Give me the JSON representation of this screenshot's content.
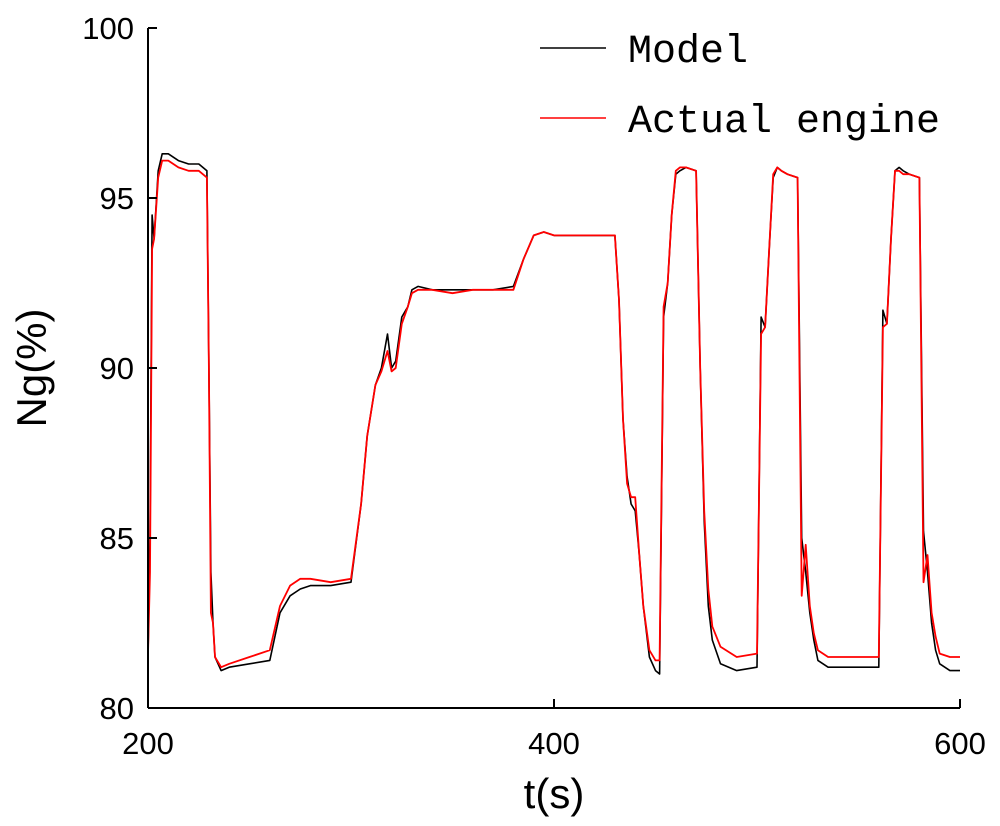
{
  "chart_data": {
    "type": "line",
    "title": "",
    "xlabel": "t(s)",
    "ylabel": "Ng(%)",
    "xlim": [
      200,
      600
    ],
    "ylim": [
      80,
      100
    ],
    "xticks": [
      200,
      400,
      600
    ],
    "yticks": [
      80,
      85,
      90,
      95,
      100
    ],
    "grid": false,
    "legend_position": "top-right",
    "series": [
      {
        "name": "Model",
        "color": "#000000",
        "x": [
          200,
          201,
          202,
          203,
          205,
          207,
          210,
          215,
          220,
          225,
          229,
          230,
          231,
          232,
          233,
          236,
          240,
          250,
          260,
          265,
          270,
          275,
          280,
          290,
          300,
          305,
          308,
          312,
          315,
          318,
          320,
          322,
          325,
          328,
          330,
          333,
          340,
          350,
          360,
          370,
          380,
          385,
          390,
          395,
          400,
          410,
          420,
          430,
          432,
          434,
          436,
          438,
          440,
          442,
          444,
          447,
          450,
          452,
          454,
          456,
          458,
          460,
          462,
          465,
          470,
          472,
          474,
          476,
          478,
          482,
          490,
          500,
          502,
          504,
          506,
          508,
          510,
          512,
          515,
          520,
          522,
          524,
          526,
          528,
          530,
          535,
          540,
          550,
          560,
          562,
          564,
          566,
          568,
          570,
          572,
          575,
          580,
          582,
          584,
          586,
          588,
          590,
          595,
          600
        ],
        "y": [
          81.5,
          85,
          94.5,
          93.8,
          95.8,
          96.3,
          96.3,
          96.1,
          96.0,
          96.0,
          95.8,
          90,
          84,
          82.5,
          81.5,
          81.1,
          81.2,
          81.3,
          81.4,
          82.8,
          83.3,
          83.5,
          83.6,
          83.6,
          83.7,
          86,
          88,
          89.5,
          90.0,
          91.0,
          90.0,
          90.2,
          91.5,
          91.8,
          92.3,
          92.4,
          92.3,
          92.3,
          92.3,
          92.3,
          92.4,
          93.2,
          93.9,
          94.0,
          93.9,
          93.9,
          93.9,
          93.9,
          92,
          88.5,
          86.8,
          86.0,
          85.8,
          84.5,
          83,
          81.5,
          81.1,
          81.0,
          91.5,
          92.5,
          94.5,
          95.7,
          95.8,
          95.9,
          95.8,
          90,
          85.5,
          83,
          82,
          81.3,
          81.1,
          81.2,
          91.5,
          91.2,
          93.5,
          95.6,
          95.9,
          95.8,
          95.7,
          95.6,
          85.0,
          84.0,
          82.8,
          82.0,
          81.4,
          81.2,
          81.2,
          81.2,
          81.2,
          91.7,
          91.3,
          93.8,
          95.8,
          95.9,
          95.8,
          95.7,
          95.6,
          85.2,
          84.0,
          82.5,
          81.7,
          81.3,
          81.1,
          81.1
        ]
      },
      {
        "name": "Actual engine",
        "color": "#ff0000",
        "x": [
          200,
          201,
          202,
          203,
          205,
          207,
          210,
          215,
          220,
          225,
          229,
          230,
          231,
          232,
          233,
          236,
          240,
          250,
          260,
          265,
          270,
          275,
          280,
          290,
          300,
          305,
          308,
          312,
          315,
          318,
          320,
          322,
          325,
          328,
          330,
          333,
          340,
          350,
          360,
          370,
          380,
          385,
          390,
          395,
          400,
          410,
          420,
          430,
          432,
          434,
          436,
          438,
          440,
          442,
          444,
          447,
          450,
          452,
          454,
          456,
          458,
          460,
          462,
          465,
          470,
          472,
          474,
          476,
          478,
          482,
          490,
          500,
          502,
          504,
          506,
          508,
          510,
          512,
          515,
          520,
          522,
          524,
          526,
          528,
          530,
          535,
          540,
          550,
          560,
          562,
          564,
          566,
          568,
          570,
          572,
          575,
          580,
          582,
          584,
          586,
          588,
          590,
          595,
          600
        ],
        "y": [
          81.6,
          84,
          93.5,
          93.8,
          95.6,
          96.1,
          96.1,
          95.9,
          95.8,
          95.8,
          95.6,
          90,
          82.8,
          82.5,
          81.5,
          81.2,
          81.3,
          81.5,
          81.7,
          83.0,
          83.6,
          83.8,
          83.8,
          83.7,
          83.8,
          86,
          88,
          89.5,
          89.9,
          90.5,
          89.9,
          90.0,
          91.3,
          91.8,
          92.2,
          92.3,
          92.3,
          92.2,
          92.3,
          92.3,
          92.3,
          93.2,
          93.9,
          94.0,
          93.9,
          93.9,
          93.9,
          93.9,
          92,
          88.5,
          86.6,
          86.2,
          86.2,
          84.5,
          83,
          81.7,
          81.4,
          81.4,
          91.8,
          92.5,
          94.5,
          95.8,
          95.9,
          95.9,
          95.8,
          90,
          85.8,
          83.5,
          82.4,
          81.8,
          81.5,
          81.6,
          91.0,
          91.2,
          93.5,
          95.7,
          95.9,
          95.8,
          95.7,
          95.6,
          83.3,
          84.8,
          83.0,
          82.2,
          81.7,
          81.5,
          81.5,
          81.5,
          81.5,
          91.2,
          91.3,
          93.8,
          95.8,
          95.8,
          95.7,
          95.7,
          95.6,
          83.7,
          84.5,
          82.8,
          82.1,
          81.6,
          81.5,
          81.5
        ]
      }
    ]
  }
}
